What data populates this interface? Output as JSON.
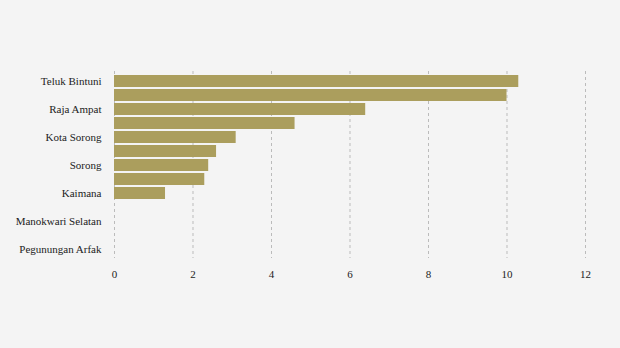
{
  "chart_data": {
    "type": "bar",
    "orientation": "horizontal",
    "categories": [
      "Teluk Bintuni",
      null,
      "Raja Ampat",
      null,
      "Kota Sorong",
      null,
      "Sorong",
      null,
      "Kaimana",
      null,
      "Manokwari Selatan",
      null,
      "Pegunungan Arfak"
    ],
    "values": [
      10.3,
      10.0,
      6.4,
      4.6,
      3.1,
      2.6,
      2.4,
      2.3,
      1.3,
      0,
      0,
      0,
      0
    ],
    "color": "#ab9e5d",
    "xlim": [
      0,
      12
    ],
    "xticks": [
      0,
      2,
      4,
      6,
      8,
      10,
      12
    ],
    "grid": true
  }
}
